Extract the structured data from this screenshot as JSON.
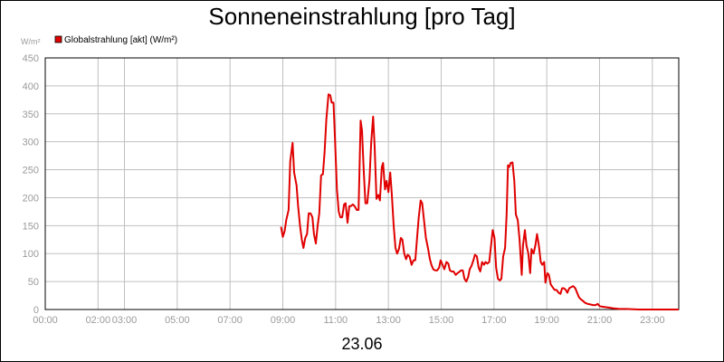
{
  "chart_data": {
    "type": "line",
    "title": "Sonneneinstrahlung [pro Tag]",
    "ylabel": "W/m²",
    "xlabel": "23.06",
    "legend": {
      "placement": "top-left",
      "entries": [
        {
          "name": "Globalstrahlung [akt] (W/m²)",
          "color": "#e00000"
        }
      ]
    },
    "grid": true,
    "xlim": [
      0,
      24
    ],
    "ylim": [
      0,
      450
    ],
    "x_ticks": [
      {
        "label": "00:00",
        "value": 0
      },
      {
        "label": "02:00",
        "value": 2
      },
      {
        "label": "03:00",
        "value": 3
      },
      {
        "label": "05:00",
        "value": 5
      },
      {
        "label": "07:00",
        "value": 7
      },
      {
        "label": "09:00",
        "value": 9
      },
      {
        "label": "11:00",
        "value": 11
      },
      {
        "label": "13:00",
        "value": 13
      },
      {
        "label": "15:00",
        "value": 15
      },
      {
        "label": "17:00",
        "value": 17
      },
      {
        "label": "19:00",
        "value": 19
      },
      {
        "label": "21:00",
        "value": 21
      },
      {
        "label": "23:00",
        "value": 23
      }
    ],
    "y_ticks": [
      0,
      50,
      100,
      150,
      200,
      250,
      300,
      350,
      400,
      450
    ],
    "series": [
      {
        "name": "Globalstrahlung [akt] (W/m²)",
        "color": "#e00000",
        "points": [
          [
            8.93,
            148
          ],
          [
            9.0,
            130
          ],
          [
            9.07,
            140
          ],
          [
            9.13,
            160
          ],
          [
            9.22,
            178
          ],
          [
            9.28,
            265
          ],
          [
            9.37,
            298
          ],
          [
            9.43,
            245
          ],
          [
            9.52,
            222
          ],
          [
            9.58,
            185
          ],
          [
            9.65,
            150
          ],
          [
            9.72,
            125
          ],
          [
            9.78,
            110
          ],
          [
            9.85,
            128
          ],
          [
            9.92,
            135
          ],
          [
            9.98,
            172
          ],
          [
            10.05,
            172
          ],
          [
            10.12,
            165
          ],
          [
            10.18,
            135
          ],
          [
            10.25,
            118
          ],
          [
            10.32,
            150
          ],
          [
            10.38,
            172
          ],
          [
            10.45,
            240
          ],
          [
            10.52,
            242
          ],
          [
            10.58,
            280
          ],
          [
            10.65,
            340
          ],
          [
            10.73,
            385
          ],
          [
            10.8,
            383
          ],
          [
            10.85,
            370
          ],
          [
            10.92,
            370
          ],
          [
            10.98,
            300
          ],
          [
            11.05,
            215
          ],
          [
            11.12,
            175
          ],
          [
            11.18,
            165
          ],
          [
            11.25,
            165
          ],
          [
            11.32,
            188
          ],
          [
            11.38,
            190
          ],
          [
            11.45,
            155
          ],
          [
            11.52,
            185
          ],
          [
            11.58,
            185
          ],
          [
            11.65,
            188
          ],
          [
            11.72,
            185
          ],
          [
            11.8,
            178
          ],
          [
            11.87,
            178
          ],
          [
            11.95,
            338
          ],
          [
            12.0,
            320
          ],
          [
            12.07,
            245
          ],
          [
            12.13,
            190
          ],
          [
            12.2,
            190
          ],
          [
            12.28,
            230
          ],
          [
            12.35,
            300
          ],
          [
            12.42,
            345
          ],
          [
            12.48,
            290
          ],
          [
            12.55,
            198
          ],
          [
            12.62,
            205
          ],
          [
            12.68,
            195
          ],
          [
            12.75,
            255
          ],
          [
            12.8,
            262
          ],
          [
            12.87,
            215
          ],
          [
            12.93,
            230
          ],
          [
            13.0,
            210
          ],
          [
            13.07,
            245
          ],
          [
            13.13,
            205
          ],
          [
            13.2,
            150
          ],
          [
            13.27,
            110
          ],
          [
            13.33,
            100
          ],
          [
            13.4,
            108
          ],
          [
            13.47,
            128
          ],
          [
            13.53,
            125
          ],
          [
            13.6,
            100
          ],
          [
            13.67,
            90
          ],
          [
            13.73,
            98
          ],
          [
            13.8,
            95
          ],
          [
            13.88,
            80
          ],
          [
            13.95,
            88
          ],
          [
            14.02,
            88
          ],
          [
            14.08,
            125
          ],
          [
            14.15,
            165
          ],
          [
            14.22,
            195
          ],
          [
            14.28,
            190
          ],
          [
            14.35,
            160
          ],
          [
            14.42,
            128
          ],
          [
            14.5,
            110
          ],
          [
            14.57,
            90
          ],
          [
            14.63,
            80
          ],
          [
            14.7,
            72
          ],
          [
            14.77,
            70
          ],
          [
            14.85,
            70
          ],
          [
            14.92,
            75
          ],
          [
            14.98,
            88
          ],
          [
            15.05,
            80
          ],
          [
            15.12,
            72
          ],
          [
            15.2,
            85
          ],
          [
            15.27,
            82
          ],
          [
            15.33,
            70
          ],
          [
            15.4,
            68
          ],
          [
            15.47,
            68
          ],
          [
            15.55,
            62
          ],
          [
            15.62,
            65
          ],
          [
            15.68,
            67
          ],
          [
            15.75,
            70
          ],
          [
            15.82,
            70
          ],
          [
            15.88,
            55
          ],
          [
            15.95,
            50
          ],
          [
            16.02,
            58
          ],
          [
            16.08,
            72
          ],
          [
            16.15,
            78
          ],
          [
            16.22,
            88
          ],
          [
            16.28,
            98
          ],
          [
            16.35,
            95
          ],
          [
            16.42,
            75
          ],
          [
            16.48,
            68
          ],
          [
            16.55,
            85
          ],
          [
            16.62,
            80
          ],
          [
            16.68,
            85
          ],
          [
            16.75,
            82
          ],
          [
            16.82,
            85
          ],
          [
            16.88,
            110
          ],
          [
            16.95,
            142
          ],
          [
            17.02,
            128
          ],
          [
            17.08,
            75
          ],
          [
            17.15,
            55
          ],
          [
            17.22,
            52
          ],
          [
            17.28,
            55
          ],
          [
            17.35,
            95
          ],
          [
            17.42,
            110
          ],
          [
            17.48,
            170
          ],
          [
            17.53,
            258
          ],
          [
            17.58,
            255
          ],
          [
            17.63,
            262
          ],
          [
            17.7,
            263
          ],
          [
            17.77,
            230
          ],
          [
            17.83,
            170
          ],
          [
            17.9,
            160
          ],
          [
            17.97,
            125
          ],
          [
            18.05,
            62
          ],
          [
            18.1,
            115
          ],
          [
            18.17,
            142
          ],
          [
            18.23,
            115
          ],
          [
            18.3,
            100
          ],
          [
            18.37,
            65
          ],
          [
            18.42,
            108
          ],
          [
            18.5,
            100
          ],
          [
            18.57,
            115
          ],
          [
            18.63,
            135
          ],
          [
            18.7,
            115
          ],
          [
            18.77,
            85
          ],
          [
            18.83,
            80
          ],
          [
            18.9,
            85
          ],
          [
            18.95,
            48
          ],
          [
            19.02,
            65
          ],
          [
            19.08,
            62
          ],
          [
            19.15,
            45
          ],
          [
            19.22,
            40
          ],
          [
            19.3,
            35
          ],
          [
            19.37,
            35
          ],
          [
            19.45,
            30
          ],
          [
            19.52,
            28
          ],
          [
            19.58,
            38
          ],
          [
            19.65,
            38
          ],
          [
            19.72,
            35
          ],
          [
            19.78,
            30
          ],
          [
            19.85,
            38
          ],
          [
            19.92,
            40
          ],
          [
            20.0,
            42
          ],
          [
            20.08,
            38
          ],
          [
            20.15,
            30
          ],
          [
            20.22,
            22
          ],
          [
            20.3,
            18
          ],
          [
            20.38,
            15
          ],
          [
            20.45,
            12
          ],
          [
            20.55,
            10
          ],
          [
            20.65,
            9
          ],
          [
            20.75,
            8
          ],
          [
            20.85,
            8
          ],
          [
            20.93,
            10
          ],
          [
            21.0,
            6
          ],
          [
            21.1,
            5
          ],
          [
            21.25,
            4
          ],
          [
            21.4,
            3
          ],
          [
            21.55,
            2
          ],
          [
            21.75,
            1
          ],
          [
            22.0,
            1
          ],
          [
            22.5,
            0
          ],
          [
            23.0,
            0
          ],
          [
            24.0,
            0
          ]
        ]
      }
    ]
  }
}
